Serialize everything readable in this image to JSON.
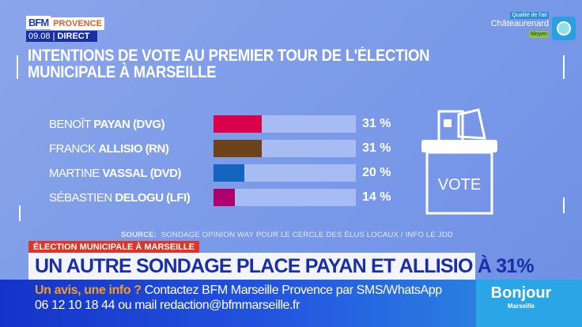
{
  "header": {
    "brand": "BFM",
    "region": "PROVENCE",
    "time": "09.08",
    "live": "DIRECT"
  },
  "air_quality": {
    "label": "Qualité de l'air",
    "city": "Châteaurenard",
    "level": "Moyen"
  },
  "chart_data": {
    "type": "bar",
    "orientation": "horizontal",
    "title": "INTENTIONS DE VOTE AU PREMIER TOUR DE L'ÉLECTION MUNICIPALE À MARSEILLE",
    "categories": [
      {
        "first": "BENOÎT",
        "last": "PAYAN",
        "party": "(DVG)"
      },
      {
        "first": "FRANCK",
        "last": "ALLISIO",
        "party": "(RN)"
      },
      {
        "first": "MARTINE",
        "last": "VASSAL",
        "party": "(DVD)"
      },
      {
        "first": "SÉBASTIEN",
        "last": "DELOGU",
        "party": "(LFI)"
      }
    ],
    "values": [
      31,
      31,
      20,
      14
    ],
    "value_labels": [
      "31 %",
      "31 %",
      "20 %",
      "14 %"
    ],
    "colors": [
      "#d9004c",
      "#6e4218",
      "#1565c0",
      "#b0006e"
    ],
    "unit": "%",
    "source_label": "SOURCE:",
    "source": "SONDAGE OPINION WAY POUR LE CERCLE DES ÉLUS LOCAUX / INFO LE JDD"
  },
  "illustration": {
    "ballot_box_text": "VOTE"
  },
  "lower_third": {
    "kicker": "ÉLECTION MUNICIPALE À MARSEILLE",
    "headline": "UN AUTRE SONDAGE PLACE PAYAN ET ALLISIO À 31%"
  },
  "ticker": {
    "lead": "Un avis, une info ?",
    "line1": "Contactez BFM Marseille Provence par SMS/WhatsApp",
    "line2": "06 12 10 18 44 ou mail redaction@bfmmarseille.fr"
  },
  "show": {
    "name": "Bonjour",
    "city": "Marseille"
  }
}
